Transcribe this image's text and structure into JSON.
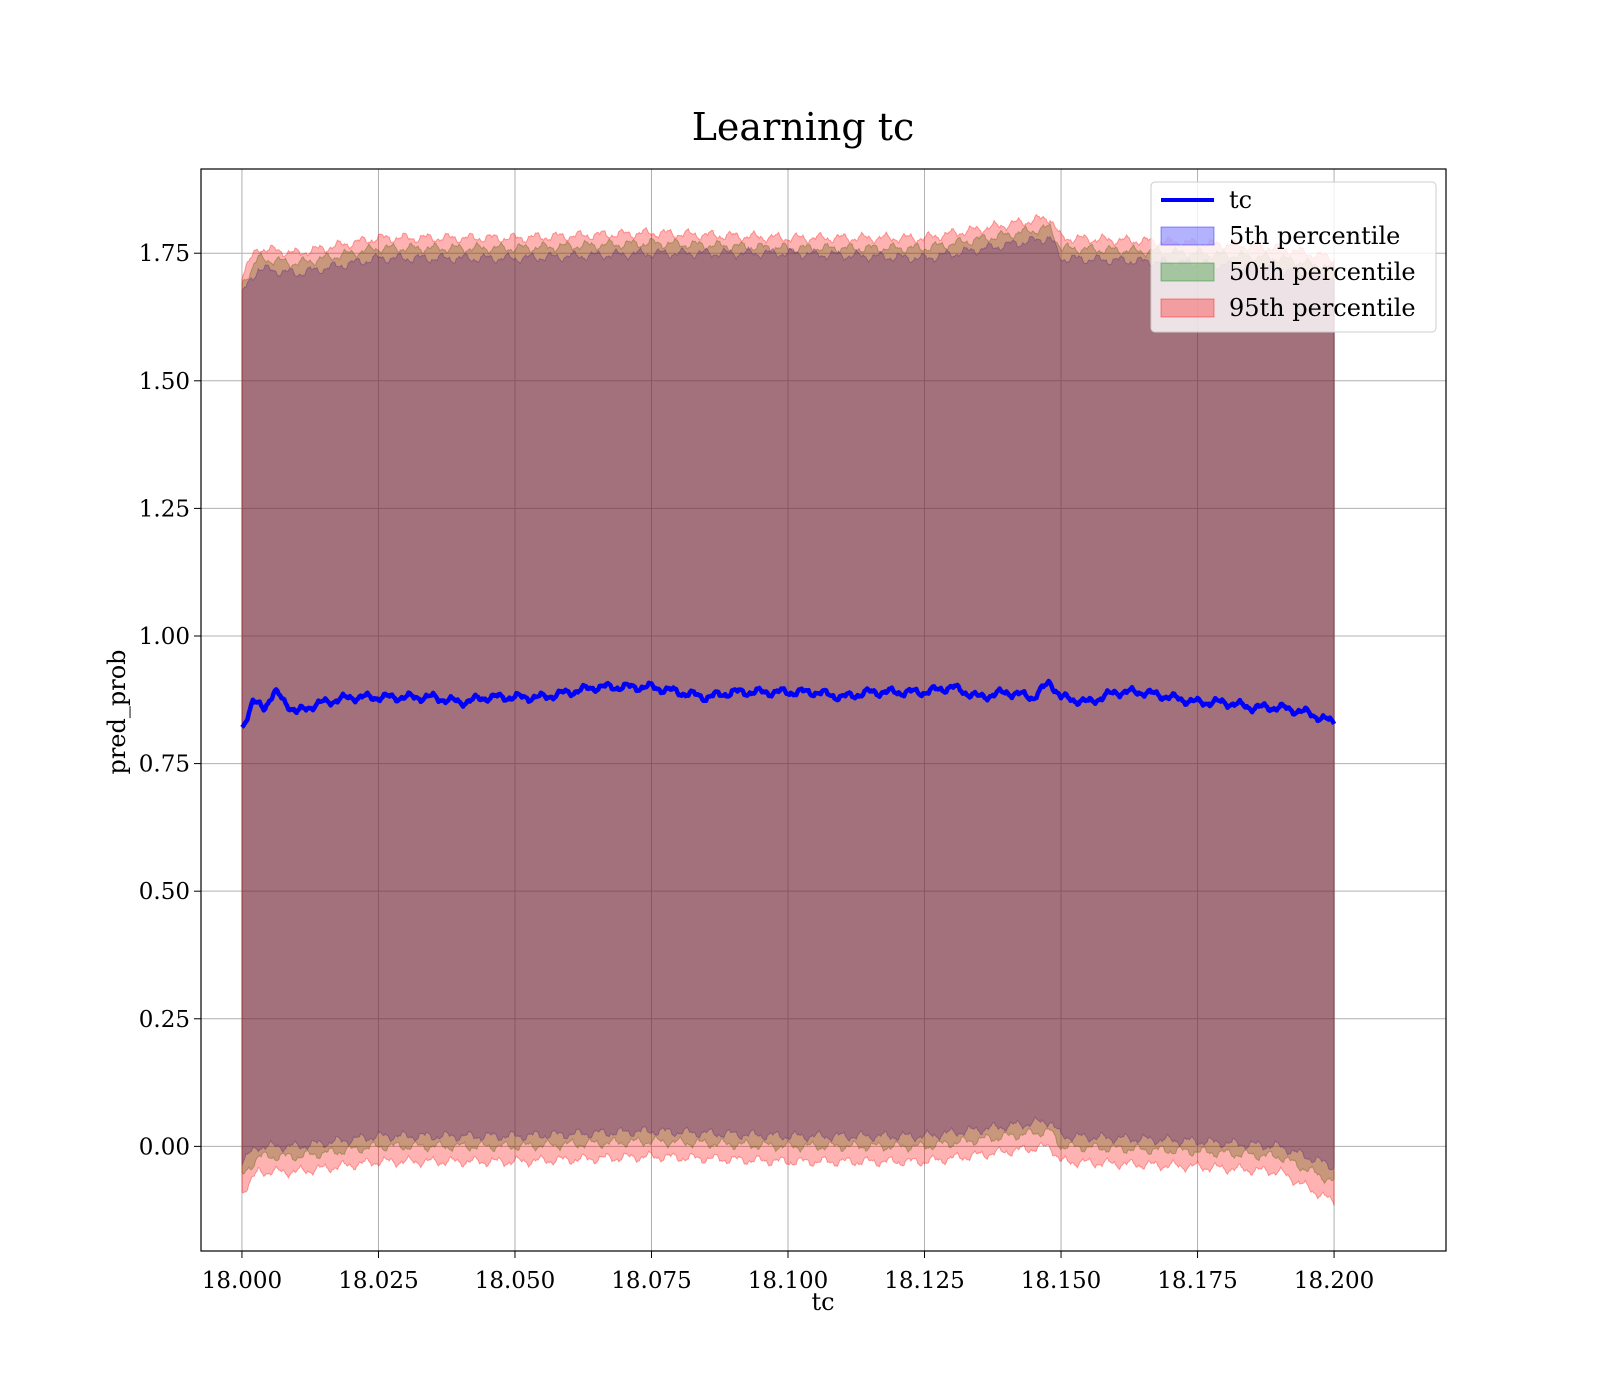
{
  "chart_data": {
    "type": "area",
    "title": "Learning tc",
    "xlabel": "tc",
    "ylabel": "pred_prob",
    "xlim": [
      17.9925,
      18.2205
    ],
    "ylim": [
      -0.205,
      1.915
    ],
    "x_range": [
      18.0,
      18.2
    ],
    "xticks": [
      "18.000",
      "18.025",
      "18.050",
      "18.075",
      "18.100",
      "18.125",
      "18.150",
      "18.175",
      "18.200"
    ],
    "yticks": [
      "0.00",
      "0.25",
      "0.50",
      "0.75",
      "1.00",
      "1.25",
      "1.50",
      "1.75"
    ],
    "grid": true,
    "legend_position": "top-right",
    "legend": [
      {
        "label": "tc",
        "kind": "line",
        "color": "#0000ff"
      },
      {
        "label": "5th percentile",
        "kind": "patch",
        "color": "#0000ff"
      },
      {
        "label": "50th percentile",
        "kind": "patch",
        "color": "#008000"
      },
      {
        "label": "95th percentile",
        "kind": "patch",
        "color": "#ff0000"
      }
    ],
    "series": [
      {
        "name": "tc",
        "kind": "line",
        "color": "#0000ff",
        "x": [
          18.0,
          18.002,
          18.004,
          18.006,
          18.008,
          18.01,
          18.012,
          18.015,
          18.02,
          18.025,
          18.03,
          18.035,
          18.04,
          18.045,
          18.05,
          18.055,
          18.06,
          18.065,
          18.07,
          18.075,
          18.08,
          18.085,
          18.09,
          18.095,
          18.1,
          18.105,
          18.11,
          18.115,
          18.12,
          18.125,
          18.13,
          18.135,
          18.14,
          18.145,
          18.148,
          18.15,
          18.155,
          18.16,
          18.165,
          18.17,
          18.175,
          18.18,
          18.185,
          18.19,
          18.195,
          18.2
        ],
        "y": [
          0.82,
          0.87,
          0.86,
          0.89,
          0.87,
          0.85,
          0.86,
          0.87,
          0.88,
          0.88,
          0.88,
          0.88,
          0.87,
          0.88,
          0.88,
          0.88,
          0.89,
          0.9,
          0.9,
          0.9,
          0.89,
          0.88,
          0.89,
          0.89,
          0.89,
          0.89,
          0.88,
          0.89,
          0.89,
          0.89,
          0.9,
          0.88,
          0.89,
          0.88,
          0.91,
          0.88,
          0.87,
          0.89,
          0.89,
          0.88,
          0.87,
          0.87,
          0.86,
          0.86,
          0.85,
          0.83
        ]
      },
      {
        "name": "5th percentile",
        "kind": "band",
        "color": "#0000ff",
        "x": [
          18.0,
          18.003,
          18.01,
          18.025,
          18.05,
          18.075,
          18.1,
          18.125,
          18.148,
          18.15,
          18.175,
          18.19,
          18.2
        ],
        "lower": [
          -0.03,
          0.0,
          0.0,
          0.02,
          0.02,
          0.03,
          0.02,
          0.02,
          0.05,
          0.02,
          0.01,
          0.0,
          -0.04
        ],
        "upper": [
          1.67,
          1.72,
          1.71,
          1.74,
          1.74,
          1.75,
          1.75,
          1.74,
          1.78,
          1.74,
          1.73,
          1.72,
          1.7
        ]
      },
      {
        "name": "50th percentile",
        "kind": "band",
        "color": "#008000",
        "x": [
          18.0,
          18.003,
          18.01,
          18.025,
          18.05,
          18.075,
          18.1,
          18.125,
          18.148,
          18.15,
          18.175,
          18.19,
          18.2
        ],
        "lower": [
          -0.06,
          -0.02,
          -0.02,
          0.0,
          0.0,
          0.01,
          0.0,
          0.0,
          0.03,
          0.0,
          -0.01,
          -0.02,
          -0.07
        ],
        "upper": [
          1.69,
          1.74,
          1.73,
          1.76,
          1.76,
          1.77,
          1.76,
          1.76,
          1.8,
          1.76,
          1.75,
          1.74,
          1.72
        ]
      },
      {
        "name": "95th percentile",
        "kind": "band",
        "color": "#ff0000",
        "x": [
          18.0,
          18.003,
          18.01,
          18.025,
          18.05,
          18.075,
          18.1,
          18.125,
          18.148,
          18.15,
          18.175,
          18.19,
          18.2
        ],
        "lower": [
          -0.09,
          -0.05,
          -0.05,
          -0.03,
          -0.03,
          -0.02,
          -0.03,
          -0.03,
          0.0,
          -0.03,
          -0.04,
          -0.05,
          -0.11
        ],
        "upper": [
          1.71,
          1.76,
          1.75,
          1.78,
          1.78,
          1.79,
          1.78,
          1.78,
          1.82,
          1.78,
          1.77,
          1.76,
          1.74
        ]
      }
    ]
  }
}
